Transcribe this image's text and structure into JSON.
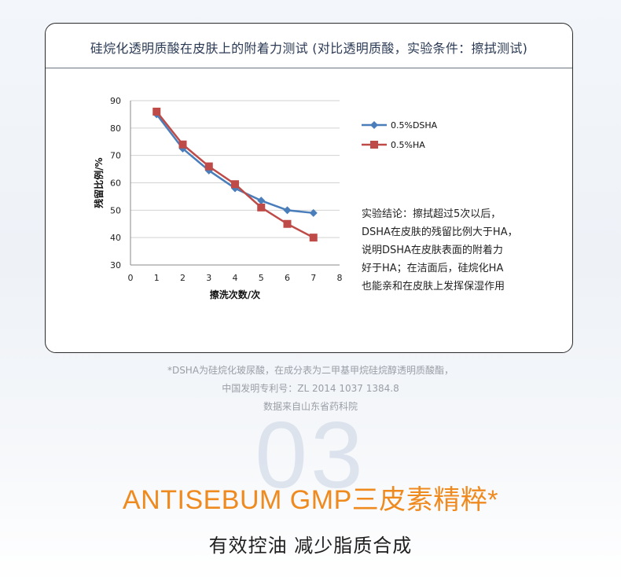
{
  "card": {
    "title": "硅烷化透明质酸在皮肤上的附着力测试 (对比透明质酸，实验条件：擦拭测试)",
    "conclusion_lines": [
      "实验结论：擦拭超过5次以后，",
      "DSHA在皮肤的残留比例大于HA，",
      "说明DSHA在皮肤表面的附着力",
      "好于HA；在洁面后，硅烷化HA",
      "也能亲和在皮肤上发挥保湿作用"
    ]
  },
  "chart_data": {
    "type": "line",
    "title": "",
    "xlabel": "擦洗次数/次",
    "ylabel": "残留比例/%",
    "x": [
      1,
      2,
      3,
      4,
      5,
      6,
      7
    ],
    "xlim": [
      0,
      8
    ],
    "ylim": [
      30,
      90
    ],
    "xticks": [
      0,
      1,
      2,
      3,
      4,
      5,
      6,
      7,
      8
    ],
    "yticks": [
      30,
      40,
      50,
      60,
      70,
      80,
      90
    ],
    "grid": "horizontal",
    "legend_position": "top-right",
    "series": [
      {
        "name": "0.5%DSHA",
        "color": "#4a7ebb",
        "marker": "diamond",
        "values": [
          85,
          72.5,
          64.5,
          58,
          53.5,
          50,
          49
        ]
      },
      {
        "name": "0.5%HA",
        "color": "#be4b48",
        "marker": "square",
        "values": [
          86,
          74,
          66,
          59.5,
          51,
          45,
          40
        ]
      }
    ]
  },
  "footnote": {
    "lines": [
      "*DSHA为硅烷化玻尿酸，在成分表为二甲基甲烷硅烷醇透明质酸酯，",
      "中国发明专利号：ZL 2014 1037 1384.8",
      "数据来自山东省药科院"
    ]
  },
  "background_number": "03",
  "headline": "ANTISEBUM GMP三皮素精粹*",
  "subline": "有效控油 减少脂质合成"
}
